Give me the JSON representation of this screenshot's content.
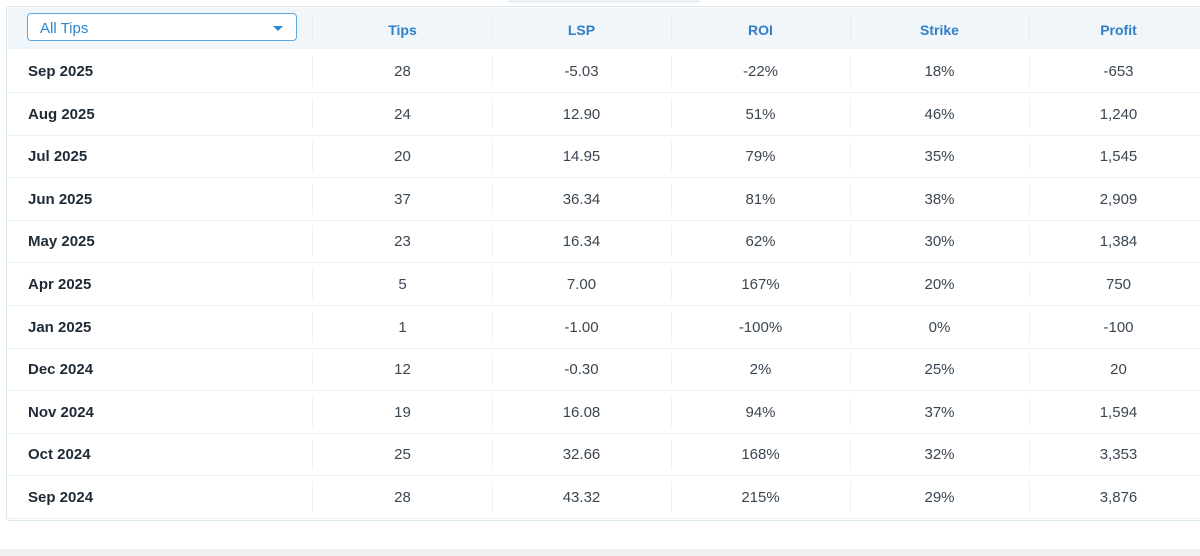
{
  "filter": {
    "selected": "All Tips"
  },
  "columns": [
    "Tips",
    "LSP",
    "ROI",
    "Strike",
    "Profit"
  ],
  "rows": [
    {
      "date": "Sep 2025",
      "tips": "28",
      "lsp": "-5.03",
      "roi": "-22%",
      "strike": "18%",
      "profit": "-653"
    },
    {
      "date": "Aug 2025",
      "tips": "24",
      "lsp": "12.90",
      "roi": "51%",
      "strike": "46%",
      "profit": "1,240"
    },
    {
      "date": "Jul 2025",
      "tips": "20",
      "lsp": "14.95",
      "roi": "79%",
      "strike": "35%",
      "profit": "1,545"
    },
    {
      "date": "Jun 2025",
      "tips": "37",
      "lsp": "36.34",
      "roi": "81%",
      "strike": "38%",
      "profit": "2,909"
    },
    {
      "date": "May 2025",
      "tips": "23",
      "lsp": "16.34",
      "roi": "62%",
      "strike": "30%",
      "profit": "1,384"
    },
    {
      "date": "Apr 2025",
      "tips": "5",
      "lsp": "7.00",
      "roi": "167%",
      "strike": "20%",
      "profit": "750"
    },
    {
      "date": "Jan 2025",
      "tips": "1",
      "lsp": "-1.00",
      "roi": "-100%",
      "strike": "0%",
      "profit": "-100"
    },
    {
      "date": "Dec 2024",
      "tips": "12",
      "lsp": "-0.30",
      "roi": "2%",
      "strike": "25%",
      "profit": "20"
    },
    {
      "date": "Nov 2024",
      "tips": "19",
      "lsp": "16.08",
      "roi": "94%",
      "strike": "37%",
      "profit": "1,594"
    },
    {
      "date": "Oct 2024",
      "tips": "25",
      "lsp": "32.66",
      "roi": "168%",
      "strike": "32%",
      "profit": "3,353"
    },
    {
      "date": "Sep 2024",
      "tips": "28",
      "lsp": "43.32",
      "roi": "215%",
      "strike": "29%",
      "profit": "3,876"
    }
  ],
  "colors": {
    "accent": "#2f7fc7",
    "header_bg": "#f1f6fa",
    "select_border": "#5ea8e0"
  }
}
